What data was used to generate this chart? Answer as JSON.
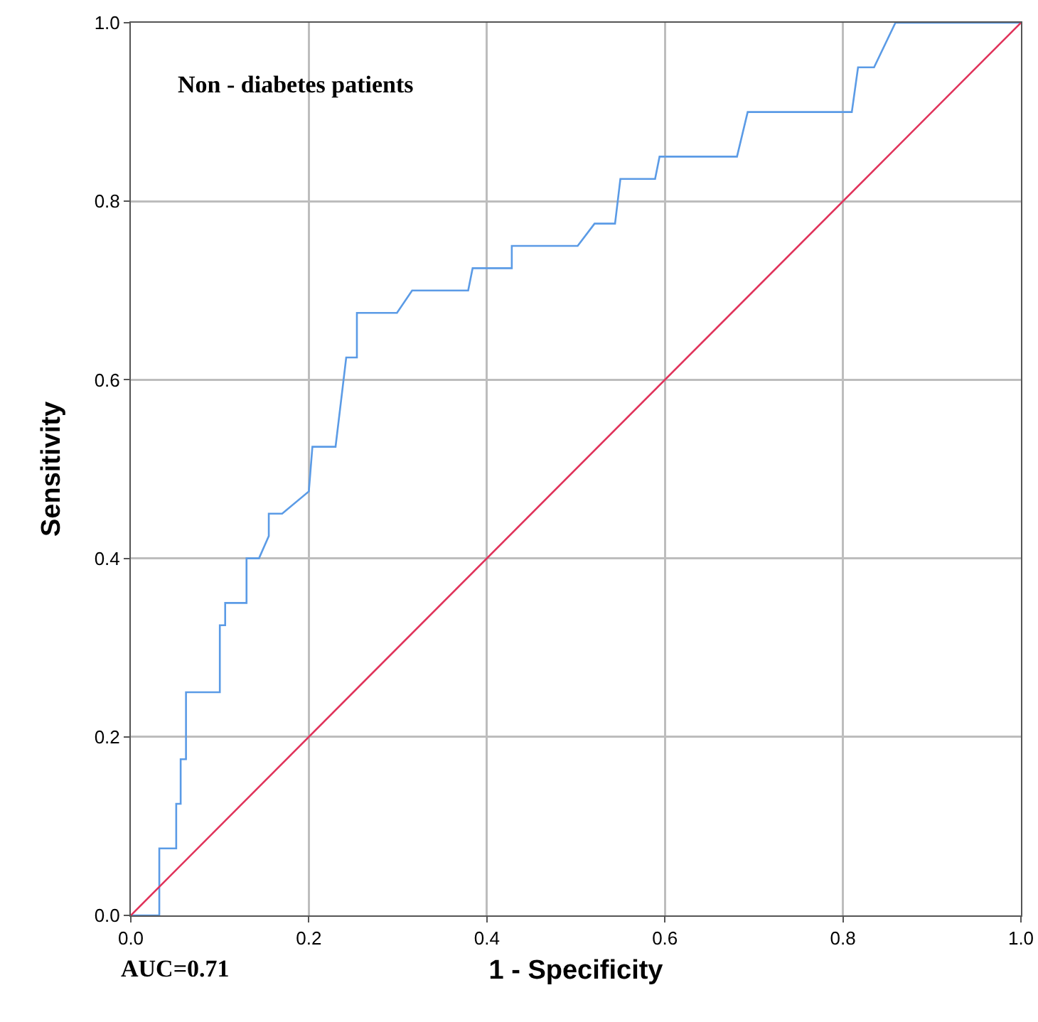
{
  "chart_data": {
    "type": "line",
    "xlabel": "1 - Specificity",
    "ylabel": "Sensitivity",
    "annotations": [
      "Non - diabetes patients",
      "AUC=0.71"
    ],
    "series": [
      {
        "color": "#5b9be6",
        "x": [
          0,
          0.032,
          0.032,
          0.051,
          0.051,
          0.056,
          0.056,
          0.062,
          0.062,
          0.1,
          0.1,
          0.106,
          0.106,
          0.13,
          0.13,
          0.144,
          0.155,
          0.155,
          0.17,
          0.2,
          0.204,
          0.23,
          0.236,
          0.242,
          0.254,
          0.254,
          0.299,
          0.316,
          0.379,
          0.384,
          0.428,
          0.428,
          0.502,
          0.521,
          0.544,
          0.55,
          0.589,
          0.594,
          0.681,
          0.693,
          0.81,
          0.817,
          0.835,
          0.859,
          1
        ],
        "values": [
          0,
          0,
          0.075,
          0.075,
          0.125,
          0.125,
          0.175,
          0.175,
          0.25,
          0.25,
          0.325,
          0.325,
          0.35,
          0.35,
          0.4,
          0.4,
          0.425,
          0.45,
          0.45,
          0.475,
          0.525,
          0.525,
          0.575,
          0.625,
          0.625,
          0.675,
          0.675,
          0.7,
          0.7,
          0.725,
          0.725,
          0.75,
          0.75,
          0.775,
          0.775,
          0.825,
          0.825,
          0.85,
          0.85,
          0.9,
          0.9,
          0.95,
          0.95,
          1,
          1
        ]
      },
      {
        "color": "#e0325a",
        "x": [
          0,
          1
        ],
        "values": [
          0,
          1
        ]
      }
    ],
    "xlim": [
      0,
      1
    ],
    "ylim": [
      0,
      1
    ],
    "xticks": [
      {
        "value": 0,
        "label": "0.0"
      },
      0.2,
      0.4,
      0.6,
      0.8,
      {
        "value": 1,
        "label": "1.0"
      }
    ],
    "yticks": [
      {
        "value": 0,
        "label": "0.0"
      },
      0.2,
      0.4,
      0.6,
      0.8,
      {
        "value": 1,
        "label": "1.0"
      }
    ],
    "grid": true,
    "marker": "none",
    "line_style": "solid"
  }
}
